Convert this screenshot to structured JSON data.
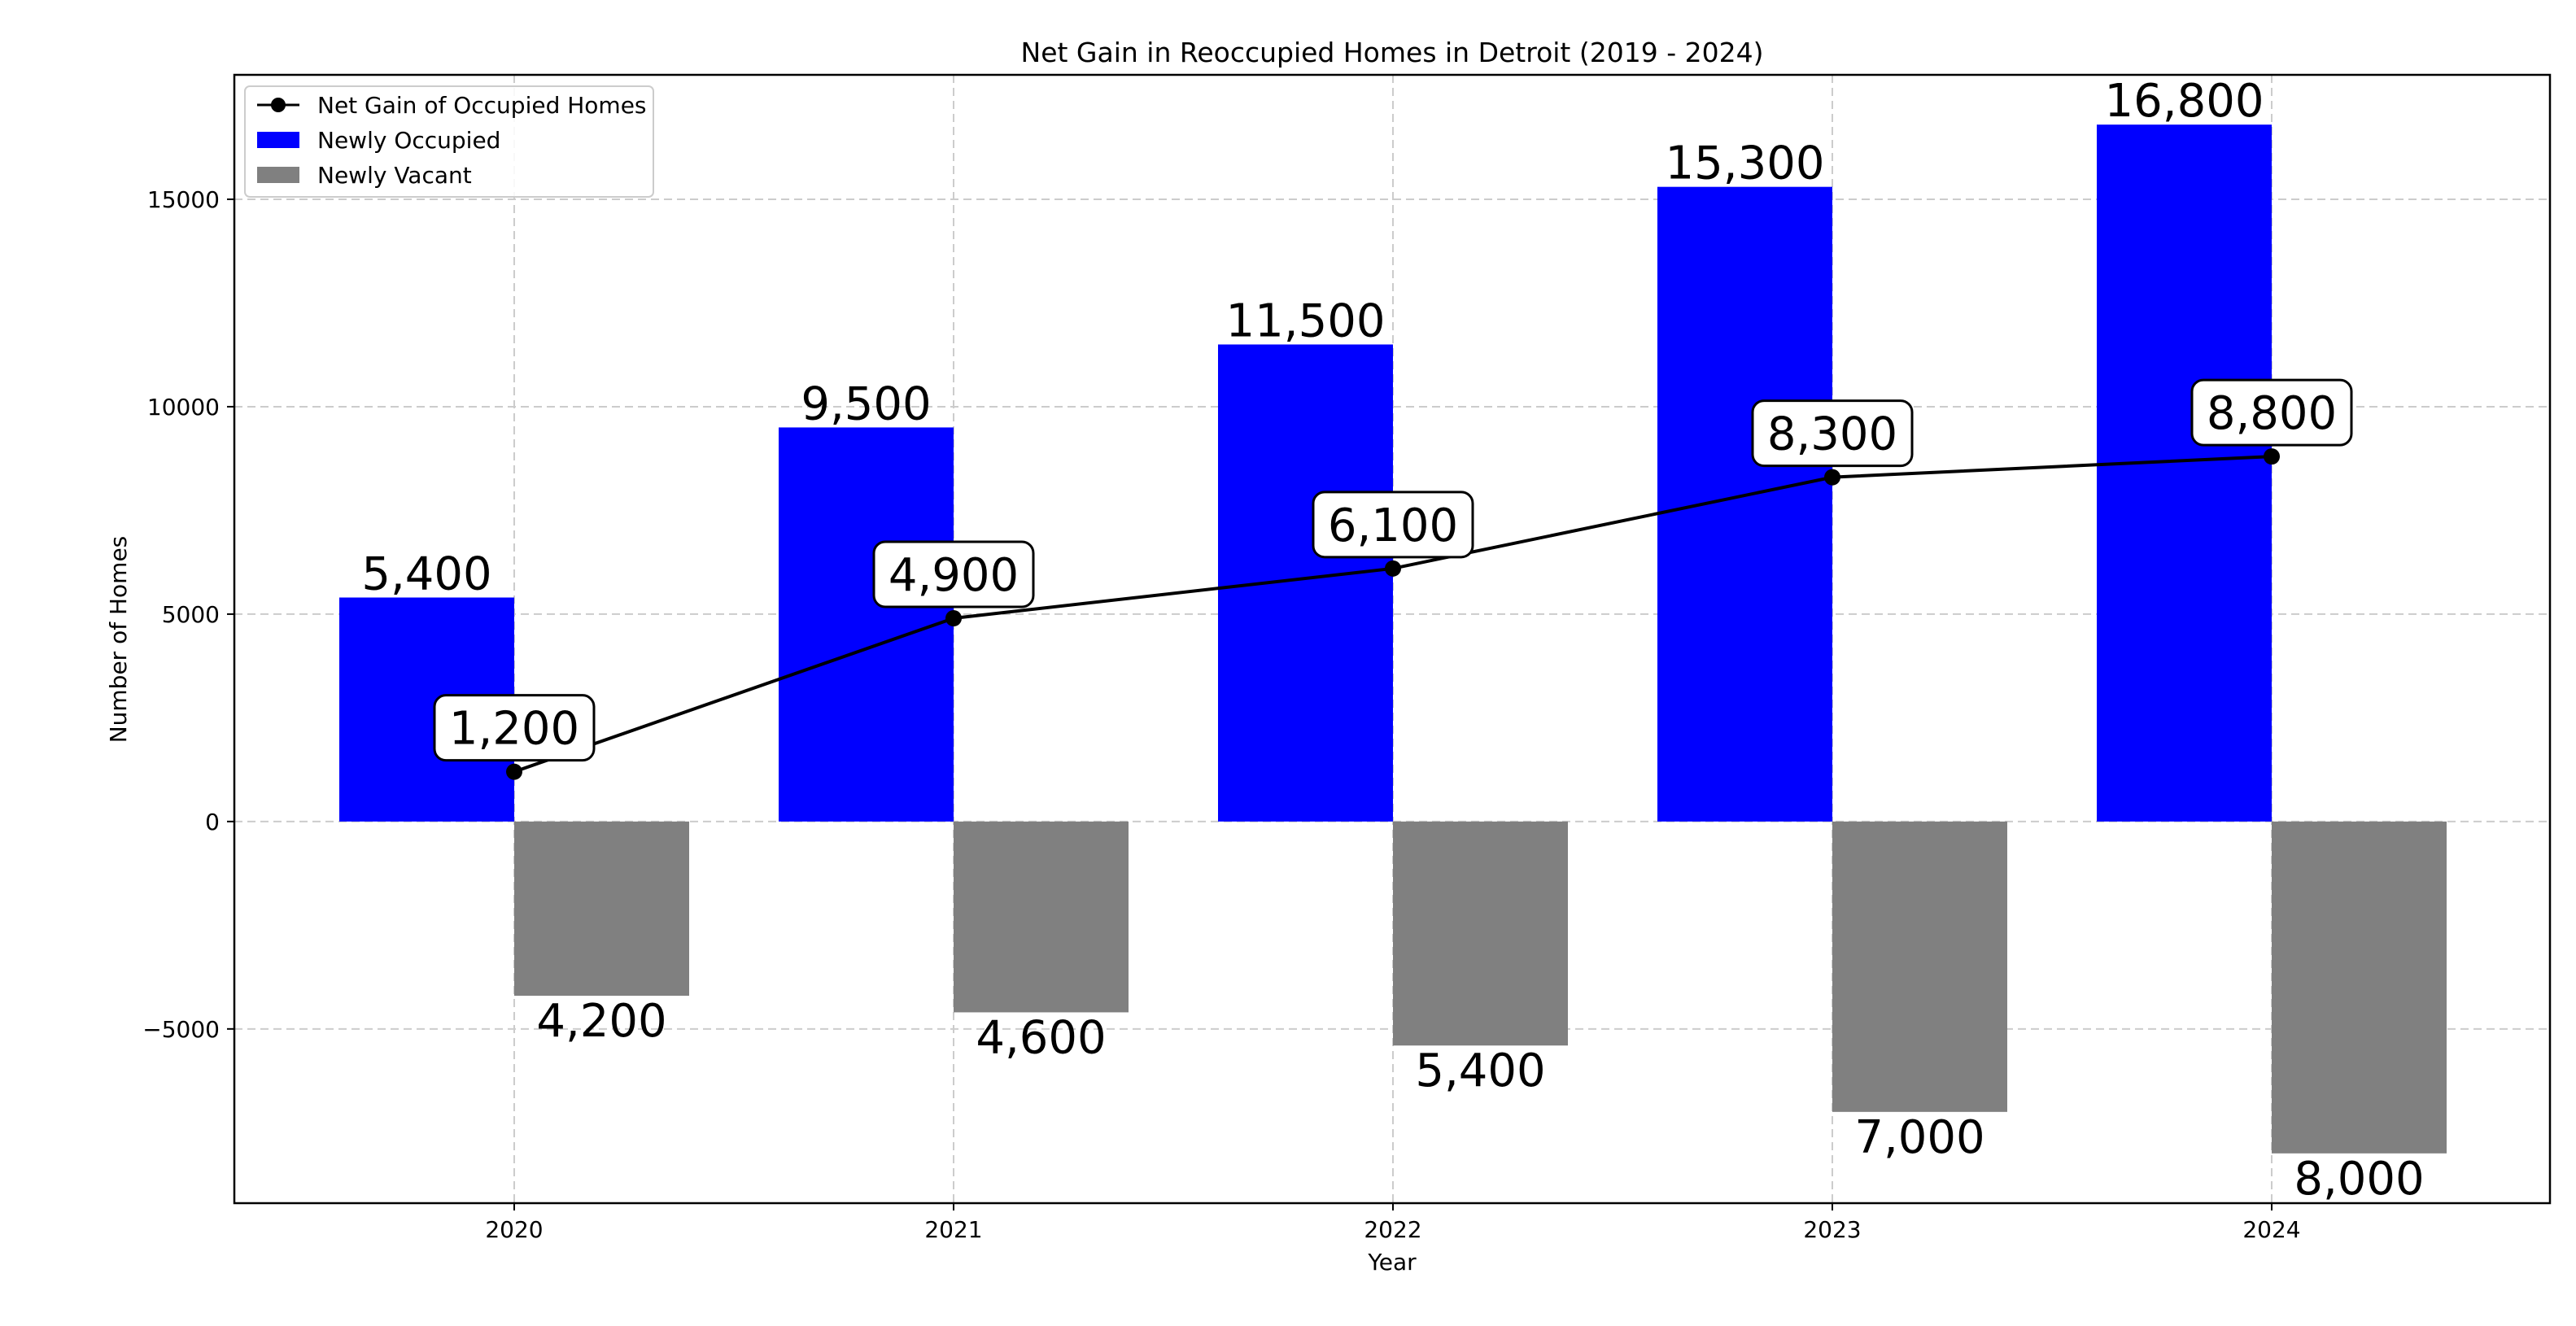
{
  "chart_data": {
    "type": "bar",
    "title": "Net Gain in Reoccupied Homes in Detroit (2019 - 2024)",
    "xlabel": "Year",
    "ylabel": "Number of Homes",
    "categories": [
      "2020",
      "2021",
      "2022",
      "2023",
      "2024"
    ],
    "ylim": [
      -9200,
      18000
    ],
    "yticks": [
      -5000,
      0,
      5000,
      10000,
      15000
    ],
    "ytick_labels": [
      "−5000",
      "0",
      "5000",
      "10000",
      "15000"
    ],
    "grid": true,
    "legend_position": "top-left",
    "series": [
      {
        "name": "Newly Occupied",
        "type": "bar",
        "color": "#0000ff",
        "values": [
          5400,
          9500,
          11500,
          15300,
          16800
        ],
        "labels": [
          "5,400",
          "9,500",
          "11,500",
          "15,300",
          "16,800"
        ]
      },
      {
        "name": "Newly Vacant",
        "type": "bar",
        "color": "#808080",
        "values": [
          -4200,
          -4600,
          -5400,
          -7000,
          -8000
        ],
        "labels": [
          "4,200",
          "4,600",
          "5,400",
          "7,000",
          "8,000"
        ]
      },
      {
        "name": "Net Gain of Occupied Homes",
        "type": "line",
        "color": "#000000",
        "values": [
          1200,
          4900,
          6100,
          8300,
          8800
        ],
        "labels": [
          "1,200",
          "4,900",
          "6,100",
          "8,300",
          "8,800"
        ]
      }
    ]
  }
}
